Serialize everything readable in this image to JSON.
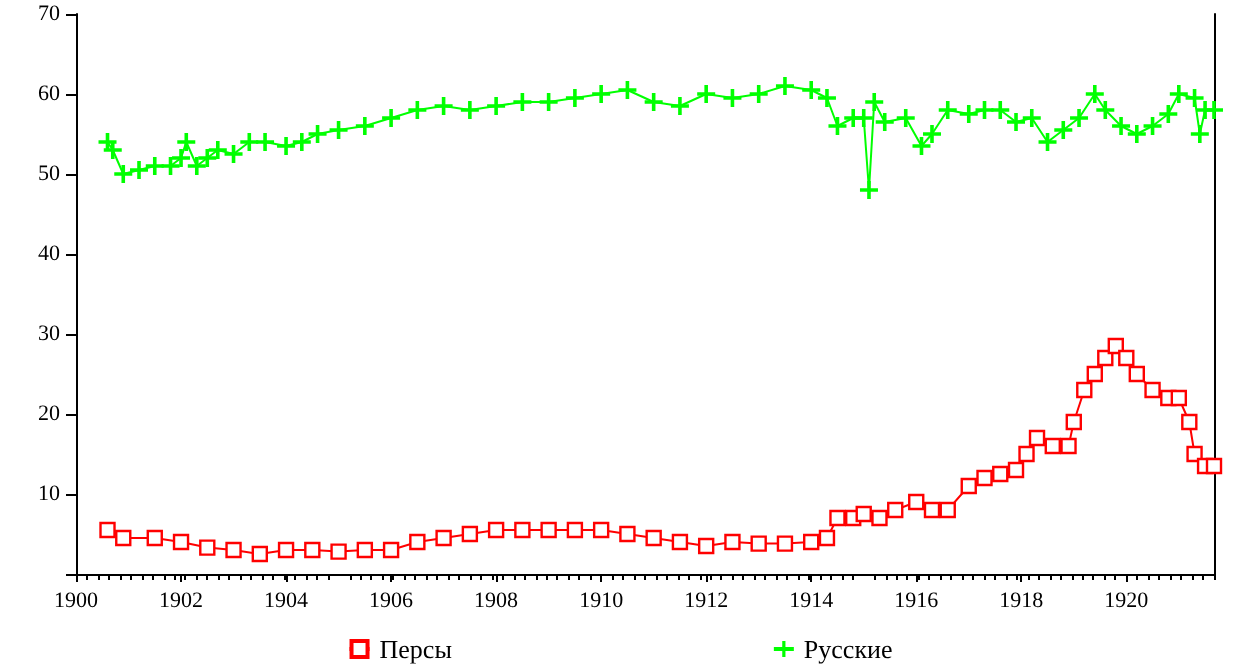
{
  "chart_data": {
    "type": "line",
    "xlim": [
      1900,
      1921.67
    ],
    "xticks": [
      1900,
      1902,
      1904,
      1906,
      1908,
      1910,
      1912,
      1914,
      1916,
      1918,
      1920
    ],
    "ylim": [
      0,
      70
    ],
    "yticks": [
      {
        "value": 0,
        "label": null
      },
      10,
      20,
      30,
      40,
      50,
      60,
      70
    ],
    "grid": false,
    "legend": "bottom",
    "series": [
      {
        "name": "Персы",
        "color": "#ff0000",
        "marker": "square",
        "x": [
          1900.6,
          1900.9,
          1901.5,
          1902.0,
          1902.5,
          1903.0,
          1903.5,
          1904.0,
          1904.5,
          1905.0,
          1905.5,
          1906.0,
          1906.5,
          1907.0,
          1907.5,
          1908.0,
          1908.5,
          1909.0,
          1909.5,
          1910.0,
          1910.5,
          1911.0,
          1911.5,
          1912.0,
          1912.5,
          1913.0,
          1913.5,
          1914.0,
          1914.3,
          1914.5,
          1914.8,
          1915.0,
          1915.3,
          1915.6,
          1916.0,
          1916.3,
          1916.6,
          1917.0,
          1917.3,
          1917.6,
          1917.9,
          1918.1,
          1918.3,
          1918.6,
          1918.9,
          1919.0,
          1919.2,
          1919.4,
          1919.6,
          1919.8,
          1920.0,
          1920.2,
          1920.5,
          1920.8,
          1921.0,
          1921.2,
          1921.3,
          1921.5,
          1921.67
        ],
        "values": [
          5.5,
          4.5,
          4.5,
          4,
          3.3,
          3,
          2.5,
          3,
          3,
          2.8,
          3,
          3,
          4,
          4.5,
          5,
          5.5,
          5.5,
          5.5,
          5.5,
          5.5,
          5,
          4.5,
          4,
          3.5,
          4,
          3.8,
          3.8,
          4,
          4.5,
          7,
          7,
          7.5,
          7,
          8,
          9,
          8,
          8,
          11,
          12,
          12.5,
          13,
          15,
          17,
          16,
          16,
          19,
          23,
          25,
          27,
          28.5,
          27,
          25,
          23,
          22,
          22,
          19,
          15,
          13.5,
          13.5
        ]
      },
      {
        "name": "Русские",
        "color": "#00ff00",
        "marker": "cross",
        "x": [
          1900.6,
          1900.7,
          1900.9,
          1901.2,
          1901.5,
          1901.8,
          1902.0,
          1902.1,
          1902.3,
          1902.5,
          1902.7,
          1903.0,
          1903.3,
          1903.6,
          1904.0,
          1904.3,
          1904.6,
          1905.0,
          1905.5,
          1906.0,
          1906.5,
          1907.0,
          1907.5,
          1908.0,
          1908.5,
          1909.0,
          1909.5,
          1910.0,
          1910.5,
          1911.0,
          1911.5,
          1912.0,
          1912.5,
          1913.0,
          1913.5,
          1914.0,
          1914.3,
          1914.5,
          1914.8,
          1915.0,
          1915.1,
          1915.2,
          1915.4,
          1915.8,
          1916.1,
          1916.3,
          1916.6,
          1917.0,
          1917.3,
          1917.6,
          1917.9,
          1918.2,
          1918.5,
          1918.8,
          1919.1,
          1919.4,
          1919.6,
          1919.9,
          1920.2,
          1920.5,
          1920.8,
          1921.0,
          1921.3,
          1921.4,
          1921.5,
          1921.67
        ],
        "values": [
          54,
          53,
          50,
          50.5,
          51,
          51,
          52,
          54,
          51,
          52,
          53,
          52.5,
          54,
          54,
          53.5,
          54,
          55,
          55.5,
          56,
          57,
          58,
          58.5,
          58,
          58.5,
          59,
          59,
          59.5,
          60,
          60.5,
          59,
          58.5,
          60,
          59.5,
          60,
          61,
          60.5,
          59.5,
          56,
          57,
          57,
          48,
          59,
          56.5,
          57,
          53.5,
          55,
          58,
          57.5,
          58,
          58,
          56.5,
          57,
          54,
          55.5,
          57,
          60,
          58,
          56,
          55,
          56,
          57.5,
          60,
          59.5,
          55,
          58,
          58
        ]
      }
    ]
  }
}
